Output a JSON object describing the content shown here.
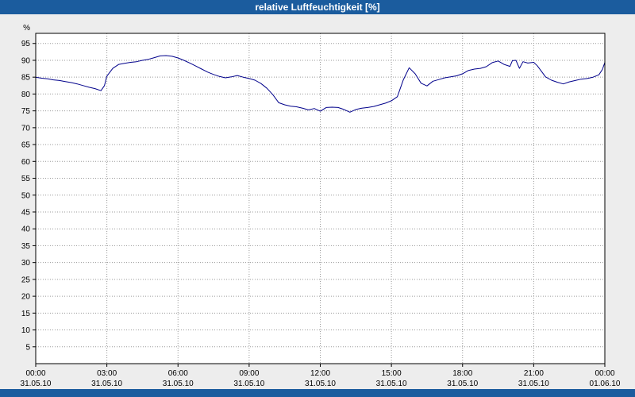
{
  "window": {
    "title": "relative Luftfeuchtigkeit [%]"
  },
  "colors": {
    "header_bar": "#1b5c9e",
    "bottom_bar": "#1b5c9e",
    "outer_background": "#ededed",
    "plot_background": "#ffffff",
    "grid": "#9a9a9a",
    "axis_border": "#000000",
    "tick_label": "#000000",
    "line": "#00008b"
  },
  "chart_data": {
    "type": "line",
    "title": "relative Luftfeuchtigkeit [%]",
    "xlabel": "",
    "ylabel": "%",
    "xlim": [
      0,
      24
    ],
    "ylim": [
      0,
      98
    ],
    "grid": true,
    "legend_position": "none",
    "y_ticks": [
      5,
      10,
      15,
      20,
      25,
      30,
      35,
      40,
      45,
      50,
      55,
      60,
      65,
      70,
      75,
      80,
      85,
      90,
      95
    ],
    "x_ticks": [
      {
        "hour": 0,
        "time": "00:00",
        "date": "31.05.10"
      },
      {
        "hour": 3,
        "time": "03:00",
        "date": "31.05.10"
      },
      {
        "hour": 6,
        "time": "06:00",
        "date": "31.05.10"
      },
      {
        "hour": 9,
        "time": "09:00",
        "date": "31.05.10"
      },
      {
        "hour": 12,
        "time": "12:00",
        "date": "31.05.10"
      },
      {
        "hour": 15,
        "time": "15:00",
        "date": "31.05.10"
      },
      {
        "hour": 18,
        "time": "18:00",
        "date": "31.05.10"
      },
      {
        "hour": 21,
        "time": "21:00",
        "date": "31.05.10"
      },
      {
        "hour": 24,
        "time": "00:00",
        "date": "01.06.10"
      }
    ],
    "series": [
      {
        "name": "relative Luftfeuchtigkeit",
        "color": "#00008b",
        "x": [
          0,
          0.25,
          0.5,
          0.75,
          1,
          1.25,
          1.5,
          1.75,
          2,
          2.25,
          2.5,
          2.75,
          2.9,
          3,
          3.25,
          3.5,
          3.75,
          4,
          4.25,
          4.5,
          4.75,
          5,
          5.25,
          5.5,
          5.75,
          6,
          6.25,
          6.5,
          6.75,
          7,
          7.25,
          7.5,
          7.75,
          8,
          8.25,
          8.5,
          8.75,
          9,
          9.25,
          9.5,
          9.75,
          10,
          10.25,
          10.5,
          10.75,
          11,
          11.25,
          11.5,
          11.75,
          12,
          12.25,
          12.5,
          12.75,
          13,
          13.25,
          13.5,
          13.75,
          14,
          14.25,
          14.5,
          14.75,
          15,
          15.25,
          15.5,
          15.75,
          16,
          16.25,
          16.5,
          16.75,
          17,
          17.25,
          17.5,
          17.75,
          18,
          18.25,
          18.5,
          18.75,
          19,
          19.25,
          19.5,
          19.75,
          20,
          20.1,
          20.25,
          20.4,
          20.55,
          20.75,
          21,
          21.15,
          21.3,
          21.5,
          21.75,
          22,
          22.25,
          22.5,
          22.75,
          23,
          23.25,
          23.5,
          23.75,
          23.9,
          24
        ],
        "values": [
          85,
          84.7,
          84.5,
          84.2,
          84,
          83.7,
          83.4,
          83,
          82.5,
          82,
          81.6,
          81,
          82.5,
          85.3,
          87.6,
          88.8,
          89.1,
          89.4,
          89.6,
          90,
          90.3,
          90.8,
          91.3,
          91.4,
          91.2,
          90.7,
          90,
          89.2,
          88.3,
          87.4,
          86.5,
          85.8,
          85.2,
          84.8,
          85.1,
          85.5,
          85,
          84.6,
          84.1,
          83.1,
          81.7,
          79.8,
          77.4,
          76.8,
          76.4,
          76.2,
          75.8,
          75.3,
          75.7,
          74.9,
          76,
          76.1,
          76,
          75.4,
          74.6,
          75.4,
          75.8,
          76,
          76.3,
          76.8,
          77.3,
          78,
          79.2,
          84.2,
          87.8,
          86,
          83.2,
          82.4,
          83.8,
          84.3,
          84.8,
          85.1,
          85.4,
          86,
          87,
          87.4,
          87.6,
          88.1,
          89.3,
          89.8,
          88.8,
          88.2,
          89.9,
          90,
          87.6,
          89.6,
          89.2,
          89.4,
          88.4,
          87,
          85.1,
          84.1,
          83.5,
          83,
          83.6,
          84,
          84.4,
          84.6,
          85,
          85.7,
          87.3,
          89.4
        ]
      }
    ]
  }
}
